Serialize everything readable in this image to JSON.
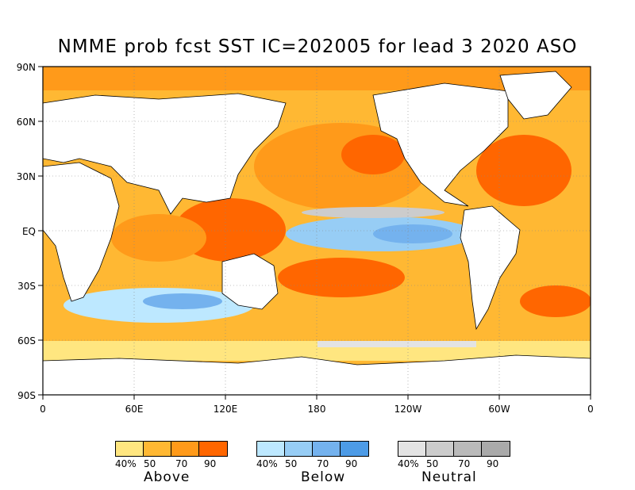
{
  "title": "NMME prob fcst SST IC=202005 for lead 3 2020 ASO",
  "y_axis_labels": [
    "90N",
    "60N",
    "30N",
    "EQ",
    "30S",
    "60S",
    "90S"
  ],
  "x_axis_labels": [
    "0",
    "60E",
    "120E",
    "180",
    "120W",
    "60W",
    "0"
  ],
  "colors": {
    "ocean_light": "#ffe680",
    "above_1": "#ffd966",
    "above_2": "#ffb833",
    "above_3": "#ff9a1a",
    "above_4": "#ff6600",
    "below_1": "#bde8ff",
    "below_2": "#97cdf5",
    "below_3": "#74b2ee",
    "below_4": "#4d9be6",
    "neutral_1": "#e3e3e3",
    "neutral_2": "#cccccc",
    "neutral_3": "#bababa",
    "neutral_4": "#aaaaaa",
    "land": "#ffffff"
  },
  "legend": {
    "above": {
      "name": "Above",
      "ticks": [
        "40%",
        "50",
        "70",
        "90"
      ]
    },
    "below": {
      "name": "Below",
      "ticks": [
        "40%",
        "50",
        "70",
        "90"
      ]
    },
    "neutral": {
      "name": "Neutral",
      "ticks": [
        "40%",
        "50",
        "70",
        "90"
      ]
    }
  }
}
